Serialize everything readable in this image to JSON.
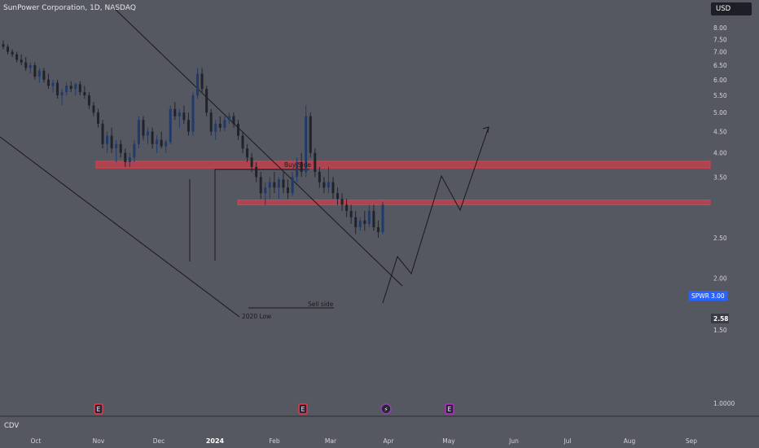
{
  "header": {
    "title": "SunPower Corporation, 1D, NASDAQ"
  },
  "currency_button": {
    "label": "USD"
  },
  "indicator_pane": {
    "label": "CDV"
  },
  "price_label": {
    "symbol": "SPWR",
    "value": "3.00"
  },
  "last_label": {
    "value": "2.58"
  },
  "chart_data": {
    "type": "candlestick",
    "y_axis": {
      "ticks": [
        "8.00",
        "7.50",
        "7.00",
        "6.50",
        "6.00",
        "5.50",
        "5.00",
        "4.50",
        "4.00",
        "3.50",
        "2.50",
        "2.00",
        "1.50",
        "1.0000"
      ],
      "scale": "log",
      "range": [
        1.0,
        8.0
      ]
    },
    "x_axis": {
      "ticks": [
        {
          "label": "Oct",
          "bold": false
        },
        {
          "label": "Nov",
          "bold": false
        },
        {
          "label": "Dec",
          "bold": false
        },
        {
          "label": "2024",
          "bold": true
        },
        {
          "label": "Feb",
          "bold": false
        },
        {
          "label": "Mar",
          "bold": false
        },
        {
          "label": "Apr",
          "bold": false
        },
        {
          "label": "May",
          "bold": false
        },
        {
          "label": "Jun",
          "bold": false
        },
        {
          "label": "Jul",
          "bold": false
        },
        {
          "label": "Aug",
          "bold": false
        },
        {
          "label": "Sep",
          "bold": false
        }
      ]
    },
    "zones": [
      {
        "from": 3.68,
        "to": 3.82,
        "color": "#f23645"
      },
      {
        "from": 3.0,
        "to": 3.08,
        "color": "#f23645"
      }
    ],
    "annotations": [
      {
        "text": "Buy Side"
      },
      {
        "text": "Sell side"
      },
      {
        "text": "2020 Low"
      }
    ],
    "event_badges": [
      {
        "text": "E",
        "color": "#f23645"
      },
      {
        "text": "E",
        "color": "#f23645"
      },
      {
        "text": "⚡",
        "color": "#8e44ad"
      },
      {
        "text": "E",
        "color": "#c026d3"
      }
    ],
    "candles": [
      [
        7.3,
        7.45,
        7.1,
        7.2
      ],
      [
        7.2,
        7.3,
        6.9,
        7.0
      ],
      [
        7.0,
        7.1,
        6.8,
        6.9
      ],
      [
        6.9,
        7.0,
        6.6,
        6.7
      ],
      [
        6.7,
        6.9,
        6.5,
        6.6
      ],
      [
        6.6,
        6.8,
        6.3,
        6.4
      ],
      [
        6.4,
        6.6,
        6.2,
        6.5
      ],
      [
        6.5,
        6.6,
        6.0,
        6.1
      ],
      [
        6.1,
        6.4,
        5.9,
        6.3
      ],
      [
        6.3,
        6.4,
        5.9,
        6.0
      ],
      [
        6.0,
        6.2,
        5.7,
        5.8
      ],
      [
        5.8,
        6.0,
        5.6,
        5.9
      ],
      [
        5.9,
        6.0,
        5.4,
        5.5
      ],
      [
        5.5,
        5.7,
        5.2,
        5.6
      ],
      [
        5.6,
        5.9,
        5.5,
        5.8
      ],
      [
        5.8,
        5.95,
        5.6,
        5.7
      ],
      [
        5.7,
        5.9,
        5.5,
        5.85
      ],
      [
        5.85,
        5.95,
        5.5,
        5.6
      ],
      [
        5.6,
        5.8,
        5.4,
        5.5
      ],
      [
        5.5,
        5.6,
        5.1,
        5.2
      ],
      [
        5.2,
        5.3,
        4.9,
        5.0
      ],
      [
        5.0,
        5.1,
        4.6,
        4.7
      ],
      [
        4.7,
        4.8,
        4.1,
        4.2
      ],
      [
        4.2,
        4.5,
        4.0,
        4.4
      ],
      [
        4.4,
        4.6,
        4.0,
        4.1
      ],
      [
        4.1,
        4.3,
        3.8,
        4.2
      ],
      [
        4.2,
        4.3,
        3.9,
        4.0
      ],
      [
        4.0,
        4.1,
        3.7,
        3.8
      ],
      [
        3.8,
        4.0,
        3.7,
        3.9
      ],
      [
        3.9,
        4.3,
        3.8,
        4.2
      ],
      [
        4.2,
        4.9,
        4.1,
        4.8
      ],
      [
        4.8,
        4.9,
        4.3,
        4.4
      ],
      [
        4.4,
        4.6,
        4.2,
        4.5
      ],
      [
        4.5,
        4.6,
        4.1,
        4.2
      ],
      [
        4.2,
        4.4,
        4.0,
        4.3
      ],
      [
        4.3,
        4.5,
        4.1,
        4.15
      ],
      [
        4.15,
        4.3,
        4.0,
        4.25
      ],
      [
        4.25,
        5.2,
        4.2,
        5.1
      ],
      [
        5.1,
        5.3,
        4.8,
        4.9
      ],
      [
        4.9,
        5.1,
        4.6,
        5.0
      ],
      [
        5.0,
        5.2,
        4.7,
        4.8
      ],
      [
        4.8,
        5.0,
        4.4,
        4.5
      ],
      [
        4.5,
        5.6,
        4.4,
        5.5
      ],
      [
        5.5,
        6.4,
        5.4,
        6.2
      ],
      [
        6.2,
        6.4,
        5.6,
        5.7
      ],
      [
        5.7,
        5.8,
        4.9,
        5.0
      ],
      [
        5.0,
        5.1,
        4.4,
        4.5
      ],
      [
        4.5,
        4.8,
        4.3,
        4.7
      ],
      [
        4.7,
        4.9,
        4.5,
        4.6
      ],
      [
        4.6,
        4.9,
        4.5,
        4.8
      ],
      [
        4.8,
        5.0,
        4.7,
        4.9
      ],
      [
        4.9,
        5.0,
        4.6,
        4.7
      ],
      [
        4.7,
        4.8,
        4.3,
        4.4
      ],
      [
        4.4,
        4.5,
        4.0,
        4.1
      ],
      [
        4.1,
        4.2,
        3.8,
        3.9
      ],
      [
        3.9,
        4.0,
        3.6,
        3.7
      ],
      [
        3.7,
        3.8,
        3.4,
        3.5
      ],
      [
        3.5,
        3.6,
        3.1,
        3.2
      ],
      [
        3.2,
        3.4,
        3.0,
        3.3
      ],
      [
        3.3,
        3.5,
        3.1,
        3.4
      ],
      [
        3.4,
        3.6,
        3.2,
        3.3
      ],
      [
        3.3,
        3.5,
        3.1,
        3.45
      ],
      [
        3.45,
        3.6,
        3.2,
        3.3
      ],
      [
        3.3,
        3.45,
        3.1,
        3.2
      ],
      [
        3.2,
        3.6,
        3.15,
        3.5
      ],
      [
        3.5,
        3.9,
        3.4,
        3.8
      ],
      [
        3.8,
        4.0,
        3.5,
        3.6
      ],
      [
        3.6,
        5.2,
        3.5,
        4.9
      ],
      [
        4.9,
        5.0,
        3.9,
        4.0
      ],
      [
        4.0,
        4.1,
        3.5,
        3.6
      ],
      [
        3.6,
        3.7,
        3.3,
        3.4
      ],
      [
        3.4,
        3.5,
        3.2,
        3.3
      ],
      [
        3.3,
        3.7,
        3.2,
        3.4
      ],
      [
        3.4,
        3.5,
        3.1,
        3.2
      ],
      [
        3.2,
        3.3,
        3.0,
        3.1
      ],
      [
        3.1,
        3.2,
        2.9,
        3.0
      ],
      [
        3.0,
        3.1,
        2.8,
        2.9
      ],
      [
        2.9,
        3.0,
        2.7,
        2.8
      ],
      [
        2.8,
        2.9,
        2.55,
        2.65
      ],
      [
        2.65,
        2.8,
        2.6,
        2.75
      ],
      [
        2.75,
        2.9,
        2.6,
        2.7
      ],
      [
        2.7,
        3.0,
        2.65,
        2.9
      ],
      [
        2.9,
        3.0,
        2.6,
        2.65
      ],
      [
        2.65,
        2.75,
        2.5,
        2.58
      ],
      [
        2.58,
        3.05,
        2.55,
        3.0
      ]
    ]
  }
}
